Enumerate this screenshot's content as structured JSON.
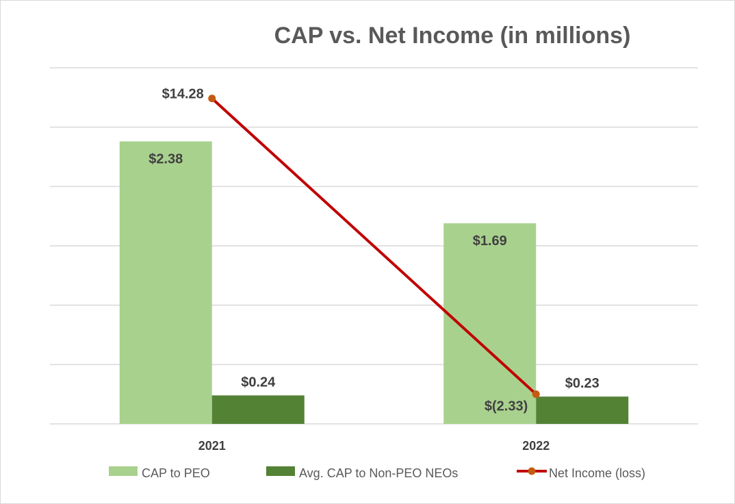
{
  "chart_data": {
    "type": "bar",
    "title": "CAP vs. Net Income (in millions)",
    "categories": [
      "2021",
      "2022"
    ],
    "series": [
      {
        "name": "CAP to PEO",
        "kind": "bar",
        "color": "#a9d18e",
        "values": [
          2.38,
          1.69
        ],
        "labels": [
          "$2.38",
          "$1.69"
        ]
      },
      {
        "name": "Avg. CAP to Non-PEO NEOs",
        "kind": "bar",
        "color": "#548235",
        "values": [
          0.24,
          0.23
        ],
        "labels": [
          "$0.24",
          "$0.23"
        ]
      },
      {
        "name": "Net Income (loss)",
        "kind": "line",
        "color": "#c00000",
        "marker_color": "#c55a11",
        "values": [
          14.28,
          -2.33
        ],
        "labels": [
          "$14.28",
          "$(2.33)"
        ]
      }
    ],
    "bar_axis": {
      "ylim": [
        0,
        3.0
      ],
      "gridlines": 6
    },
    "line_axis": {
      "ylim": [
        -4.0,
        16.0
      ]
    },
    "legend_position": "bottom",
    "xlabel": "",
    "ylabel": ""
  }
}
